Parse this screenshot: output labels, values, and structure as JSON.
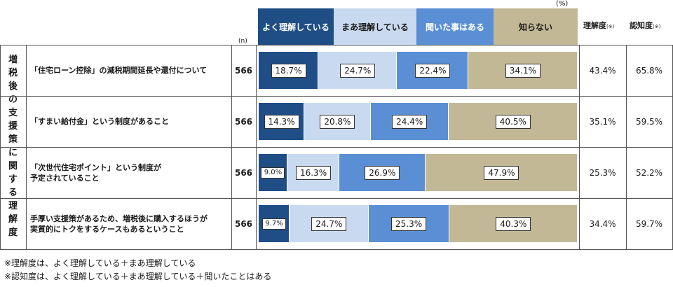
{
  "unit_label": "(%)",
  "n_header": "(n)",
  "side_title": "増税後の支援策に関する理解度",
  "col_headers": {
    "understanding": "理解度",
    "awareness": "認知度",
    "note_mark": "(※)"
  },
  "colors": {
    "c1": "#1f4e86",
    "c2": "#c9d9ef",
    "c3": "#5b8fd5",
    "c4": "#c2b896"
  },
  "chart_data": {
    "type": "bar",
    "stacked": true,
    "orientation": "horizontal",
    "xlim": [
      0,
      100
    ],
    "series": [
      {
        "name": "よく理解している",
        "values": [
          18.7,
          14.3,
          9.0,
          9.7
        ]
      },
      {
        "name": "まあ理解している",
        "values": [
          24.7,
          20.8,
          16.3,
          24.7
        ]
      },
      {
        "name": "聞いた事はある",
        "values": [
          22.4,
          24.4,
          26.9,
          25.3
        ]
      },
      {
        "name": "知らない",
        "values": [
          34.1,
          40.5,
          47.9,
          40.3
        ]
      }
    ],
    "categories": [
      [
        "「住宅ローン控除」の減税期間延長や還付について"
      ],
      [
        "「すまい給付金」という制度があること"
      ],
      [
        "「次世代住宅ポイント」という制度が",
        "予定されていること"
      ],
      [
        "手厚い支援策があるため、増税後に購入するほうが",
        "実質的にトクをするケースもあるということ"
      ]
    ],
    "n": [
      "566",
      "566",
      "566",
      "566"
    ],
    "understanding": [
      "43.4%",
      "35.1%",
      "25.3%",
      "34.4%"
    ],
    "awareness": [
      "65.8%",
      "59.5%",
      "52.2%",
      "59.7%"
    ]
  },
  "notes": [
    "※理解度は、よく理解している＋まあ理解している",
    "※認知度は、よく理解している＋まあ理解している＋聞いたことはある"
  ]
}
